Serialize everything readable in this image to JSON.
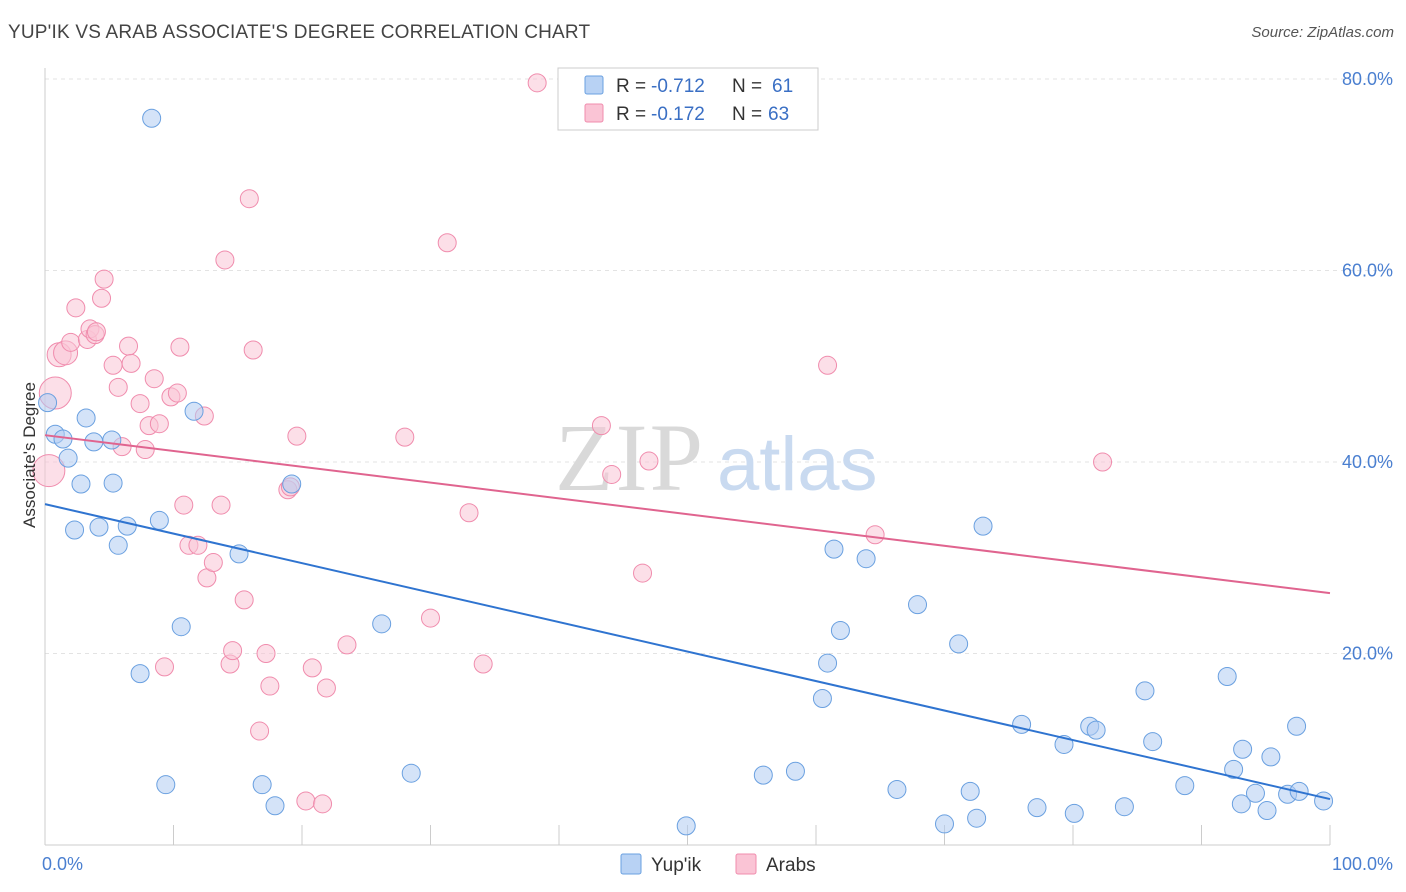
{
  "title": "YUP'IK VS ARAB ASSOCIATE'S DEGREE CORRELATION CHART",
  "source_prefix": "Source: ",
  "source_name": "ZipAtlas.com",
  "watermark": {
    "zip": "ZIP",
    "atlas": "atlas"
  },
  "colors": {
    "yupik": "#6aa0e0",
    "arabs": "#f08cad",
    "yupik_line": "#2f74d0",
    "arabs_line": "#e0648f",
    "tick": "#4a7fd0"
  },
  "stats_legend": [
    {
      "series": "Yup'ik",
      "r_label": "R = ",
      "r_value": "-0.712",
      "n_label": "N = ",
      "n_value": "61"
    },
    {
      "series": "Arabs",
      "r_label": "R = ",
      "r_value": "-0.172",
      "n_label": "N = ",
      "n_value": "63"
    }
  ],
  "chart_data": {
    "type": "scatter",
    "ylabel": "Associate's Degree",
    "xlim": [
      0,
      100
    ],
    "ylim": [
      0,
      80
    ],
    "x_tick_labels": [
      "0.0%",
      "100.0%"
    ],
    "y_ticks": [
      20,
      40,
      60,
      80
    ],
    "y_tick_labels": [
      "20.0%",
      "40.0%",
      "60.0%",
      "80.0%"
    ],
    "legend_position": "bottom-center",
    "series": [
      {
        "name": "Yup'ik",
        "trend": {
          "x": [
            0,
            100
          ],
          "y": [
            35.6,
            4.8
          ]
        },
        "points": [
          [
            0.2,
            46.2
          ],
          [
            0.8,
            42.9
          ],
          [
            1.4,
            42.4
          ],
          [
            1.8,
            40.4
          ],
          [
            2.3,
            32.9
          ],
          [
            2.8,
            37.7
          ],
          [
            3.2,
            44.6
          ],
          [
            3.8,
            42.1
          ],
          [
            4.2,
            33.2
          ],
          [
            5.2,
            42.3
          ],
          [
            5.3,
            37.8
          ],
          [
            5.7,
            31.3
          ],
          [
            6.4,
            33.3
          ],
          [
            7.4,
            17.9
          ],
          [
            8.3,
            75.9
          ],
          [
            8.9,
            33.9
          ],
          [
            9.4,
            6.3
          ],
          [
            10.6,
            22.8
          ],
          [
            11.6,
            45.3
          ],
          [
            15.1,
            30.4
          ],
          [
            16.9,
            6.3
          ],
          [
            17.9,
            4.1
          ],
          [
            19.2,
            37.7
          ],
          [
            26.2,
            23.1
          ],
          [
            28.5,
            7.5
          ],
          [
            49.9,
            2.0
          ],
          [
            55.9,
            7.3
          ],
          [
            58.4,
            7.7
          ],
          [
            60.5,
            15.3
          ],
          [
            60.9,
            19.0
          ],
          [
            61.4,
            30.9
          ],
          [
            61.9,
            22.4
          ],
          [
            63.9,
            29.9
          ],
          [
            66.3,
            5.8
          ],
          [
            67.9,
            25.1
          ],
          [
            70.0,
            2.2
          ],
          [
            71.1,
            21.0
          ],
          [
            72.0,
            5.6
          ],
          [
            72.5,
            2.8
          ],
          [
            73.0,
            33.3
          ],
          [
            76.0,
            12.6
          ],
          [
            77.2,
            3.9
          ],
          [
            79.3,
            10.5
          ],
          [
            80.1,
            3.3
          ],
          [
            81.3,
            12.4
          ],
          [
            81.8,
            12.0
          ],
          [
            84.0,
            4.0
          ],
          [
            85.6,
            16.1
          ],
          [
            86.2,
            10.8
          ],
          [
            88.7,
            6.2
          ],
          [
            92.0,
            17.6
          ],
          [
            92.5,
            7.9
          ],
          [
            93.1,
            4.3
          ],
          [
            93.2,
            10.0
          ],
          [
            94.2,
            5.4
          ],
          [
            95.1,
            3.6
          ],
          [
            95.4,
            9.2
          ],
          [
            96.7,
            5.3
          ],
          [
            97.4,
            12.4
          ],
          [
            97.6,
            5.6
          ],
          [
            99.5,
            4.6
          ]
        ]
      },
      {
        "name": "Arabs",
        "trend": {
          "x": [
            0,
            100
          ],
          "y": [
            42.8,
            26.3
          ]
        },
        "points": [
          [
            0.3,
            39.1
          ],
          [
            0.8,
            47.2
          ],
          [
            1.1,
            51.2
          ],
          [
            1.6,
            51.4
          ],
          [
            2.0,
            52.5
          ],
          [
            2.4,
            56.1
          ],
          [
            3.3,
            52.8
          ],
          [
            3.5,
            53.9
          ],
          [
            3.9,
            53.3
          ],
          [
            4.0,
            53.6
          ],
          [
            4.4,
            57.1
          ],
          [
            4.6,
            59.1
          ],
          [
            5.3,
            50.1
          ],
          [
            5.7,
            47.8
          ],
          [
            6.0,
            41.6
          ],
          [
            6.5,
            52.1
          ],
          [
            6.7,
            50.3
          ],
          [
            7.4,
            46.1
          ],
          [
            7.8,
            41.3
          ],
          [
            8.1,
            43.8
          ],
          [
            8.5,
            48.7
          ],
          [
            8.9,
            44.0
          ],
          [
            9.3,
            18.6
          ],
          [
            9.8,
            46.8
          ],
          [
            10.3,
            47.2
          ],
          [
            10.5,
            52.0
          ],
          [
            10.8,
            35.5
          ],
          [
            11.2,
            31.3
          ],
          [
            11.9,
            31.3
          ],
          [
            12.4,
            44.8
          ],
          [
            12.6,
            27.9
          ],
          [
            13.1,
            29.5
          ],
          [
            13.7,
            35.5
          ],
          [
            14.0,
            61.1
          ],
          [
            14.4,
            18.9
          ],
          [
            14.6,
            20.3
          ],
          [
            15.5,
            25.6
          ],
          [
            15.9,
            67.5
          ],
          [
            16.2,
            51.7
          ],
          [
            16.7,
            11.9
          ],
          [
            17.2,
            20.0
          ],
          [
            17.5,
            16.6
          ],
          [
            18.9,
            37.1
          ],
          [
            19.1,
            37.4
          ],
          [
            19.6,
            42.7
          ],
          [
            20.3,
            4.6
          ],
          [
            20.8,
            18.5
          ],
          [
            21.6,
            4.3
          ],
          [
            21.9,
            16.4
          ],
          [
            23.5,
            20.9
          ],
          [
            28.0,
            42.6
          ],
          [
            30.0,
            23.7
          ],
          [
            31.3,
            62.9
          ],
          [
            33.0,
            34.7
          ],
          [
            34.1,
            18.9
          ],
          [
            38.3,
            79.6
          ],
          [
            43.3,
            43.8
          ],
          [
            44.1,
            38.7
          ],
          [
            46.5,
            28.4
          ],
          [
            47.0,
            40.1
          ],
          [
            60.9,
            50.1
          ],
          [
            64.6,
            32.4
          ],
          [
            82.3,
            40.0
          ]
        ]
      }
    ]
  }
}
